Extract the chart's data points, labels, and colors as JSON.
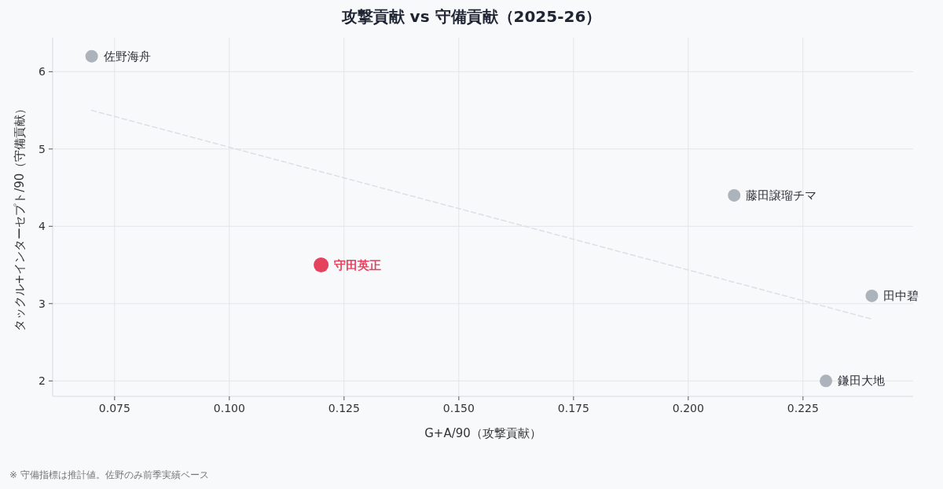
{
  "chart_data": {
    "type": "scatter",
    "title": "攻撃貢献 vs 守備貢献（2025-26）",
    "xlabel": "G+A/90（攻撃貢献）",
    "ylabel": "タックル+インターセプト/90（守備貢献）",
    "xlim": [
      0.0615,
      0.249
    ],
    "xticks": [
      {
        "value": 0.075,
        "label": "0.075"
      },
      {
        "value": 0.1,
        "label": "0.100"
      },
      {
        "value": 0.125,
        "label": "0.125"
      },
      {
        "value": 0.15,
        "label": "0.150"
      },
      {
        "value": 0.175,
        "label": "0.175"
      },
      {
        "value": 0.2,
        "label": "0.200"
      },
      {
        "value": 0.225,
        "label": "0.225"
      }
    ],
    "ylim": [
      1.8,
      6.44
    ],
    "yticks": [
      2,
      3,
      4,
      5,
      6
    ],
    "grid": true,
    "marker": "circle",
    "series": [
      {
        "type": "line",
        "marker": "none",
        "line_style": "dashed",
        "color": "#dcdfe4",
        "x": [
          0.07,
          0.24
        ],
        "values": [
          5.5,
          2.8
        ]
      },
      {
        "name": "佐野海舟",
        "color": "#adb3bb",
        "x": [
          0.07
        ],
        "values": [
          6.2
        ]
      },
      {
        "name": "守田英正",
        "color": "#e5425e",
        "x": [
          0.12
        ],
        "values": [
          3.5
        ]
      },
      {
        "name": "藤田譲瑠チマ",
        "color": "#adb3bb",
        "x": [
          0.21
        ],
        "values": [
          4.4
        ]
      },
      {
        "name": "田中碧",
        "color": "#adb3bb",
        "x": [
          0.24
        ],
        "values": [
          3.1
        ]
      },
      {
        "name": "鎌田大地",
        "color": "#adb3bb",
        "x": [
          0.23
        ],
        "values": [
          2.0
        ]
      }
    ],
    "annotations": [
      "※ 守備指標は推計値。佐野のみ前季実績ベース"
    ]
  }
}
